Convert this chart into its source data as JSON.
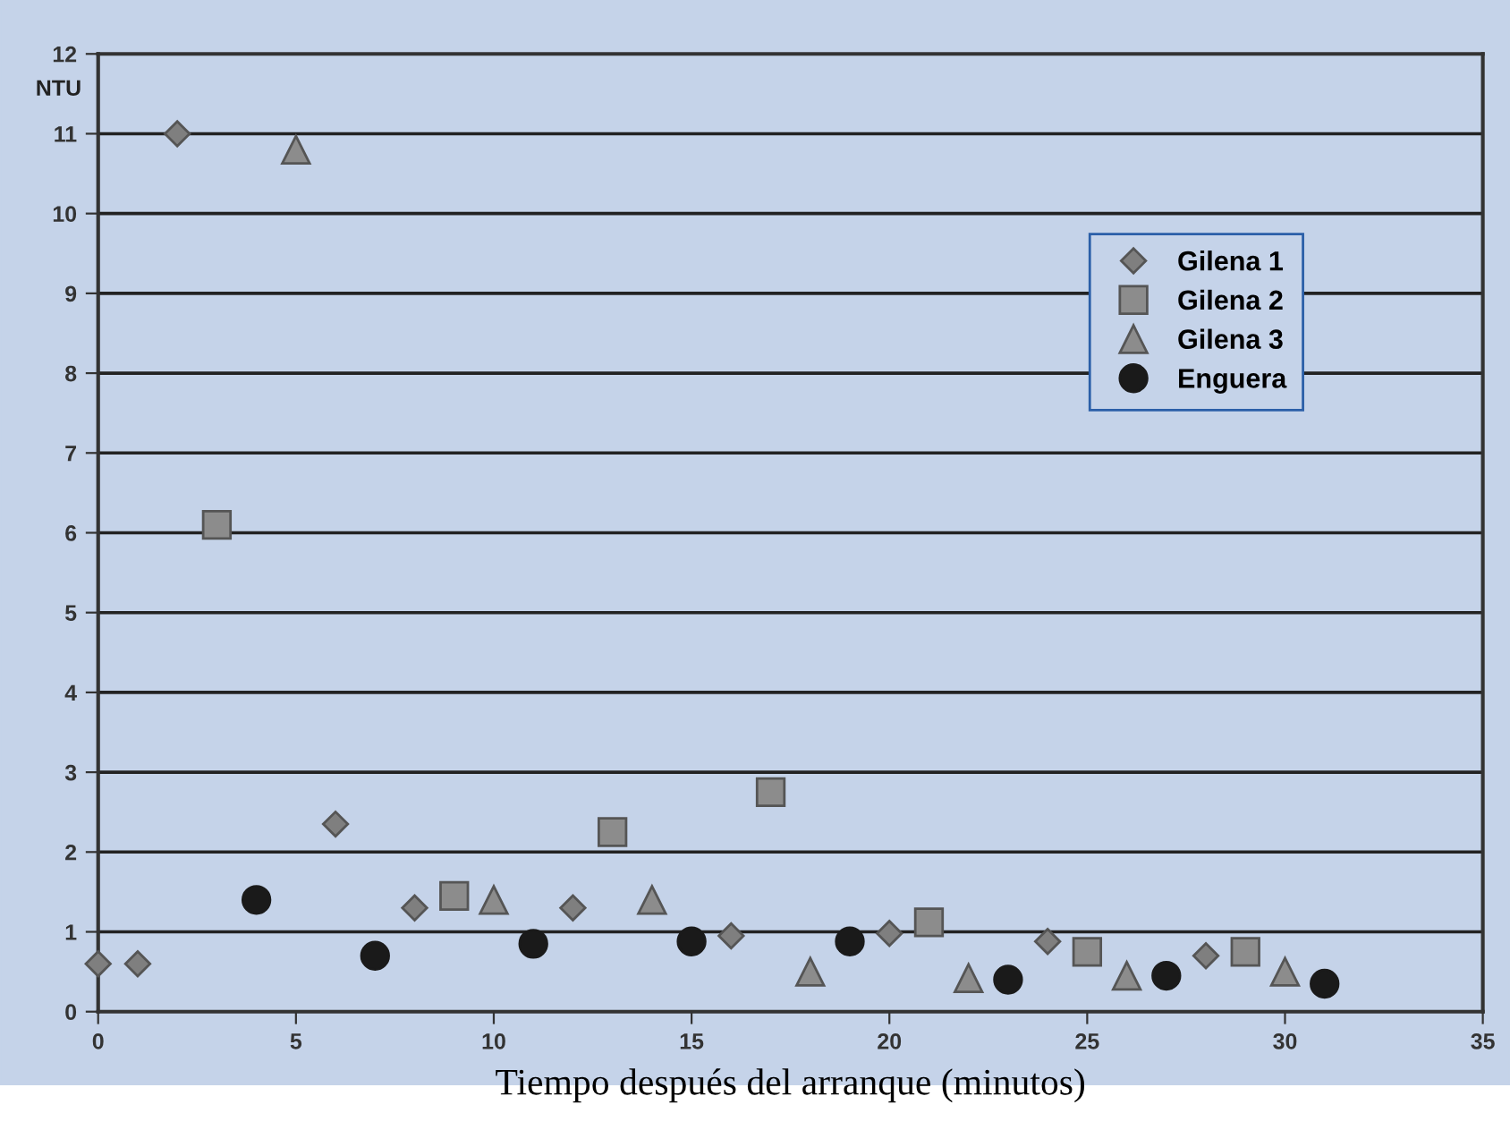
{
  "chart_data": {
    "type": "scatter",
    "ylabel": "NTU",
    "xlabel": "Tiempo después del arranque (minutos)",
    "xlim": [
      0,
      35
    ],
    "xticks": [
      0,
      5,
      10,
      15,
      20,
      25,
      30,
      35
    ],
    "ylim": [
      0,
      12
    ],
    "yticks": [
      0,
      1,
      2,
      3,
      4,
      5,
      6,
      7,
      8,
      9,
      10,
      11,
      12
    ],
    "grid": "y",
    "legend": "right",
    "series": [
      {
        "name": "Gilena 1",
        "color": "#7f7f7f",
        "marker": "diamond",
        "x": [
          0,
          1,
          2,
          6,
          8,
          12,
          16,
          20,
          24,
          28
        ],
        "values": [
          0.6,
          0.6,
          11,
          2.35,
          1.3,
          1.3,
          0.95,
          0.98,
          0.88,
          0.7
        ]
      },
      {
        "name": "Gilena 2",
        "color": "#8c8c8c",
        "marker": "square",
        "x": [
          3,
          9,
          13,
          17,
          21,
          25,
          29
        ],
        "values": [
          6.1,
          1.45,
          2.25,
          2.75,
          1.12,
          0.75,
          0.75
        ]
      },
      {
        "name": "Gilena 3",
        "color": "#8c8c8c",
        "marker": "triangle",
        "x": [
          5,
          10,
          14,
          18,
          22,
          26,
          30
        ],
        "values": [
          10.8,
          1.4,
          1.4,
          0.5,
          0.42,
          0.45,
          0.5
        ]
      },
      {
        "name": "Enguera",
        "color": "#1a1a1a",
        "marker": "circle",
        "x": [
          4,
          7,
          11,
          15,
          19,
          23,
          27,
          31
        ],
        "values": [
          1.4,
          0.7,
          0.85,
          0.88,
          0.88,
          0.4,
          0.45,
          0.35
        ]
      }
    ]
  }
}
